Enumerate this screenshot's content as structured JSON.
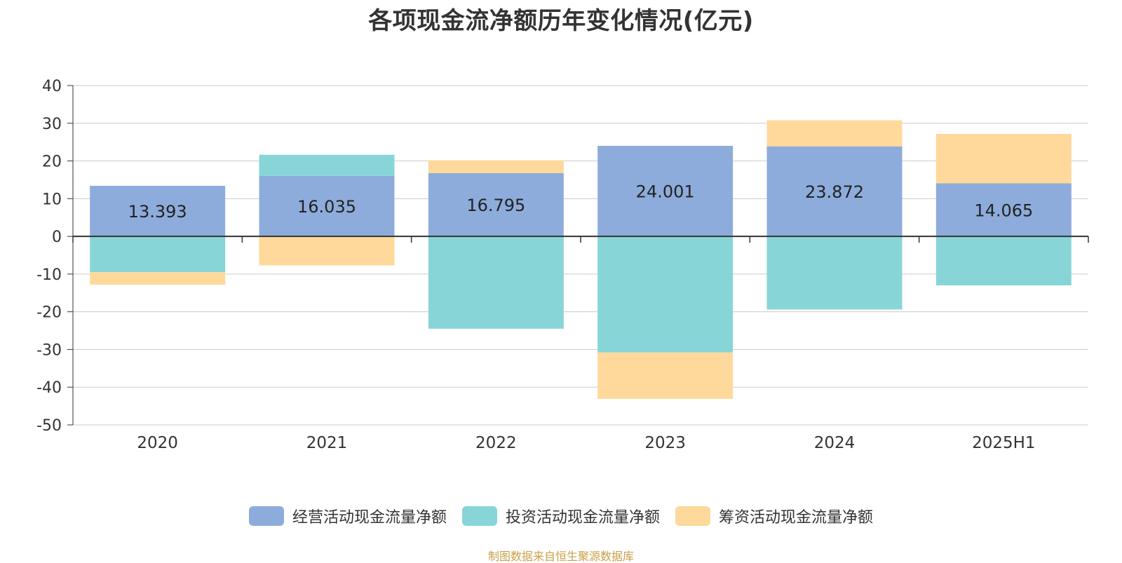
{
  "page": {
    "source": "制图数据来自恒生聚源数据库"
  },
  "chart_data": {
    "type": "bar",
    "stacked": true,
    "title": "各项现金流净额历年变化情况(亿元)",
    "categories": [
      "2020",
      "2021",
      "2022",
      "2023",
      "2024",
      "2025H1"
    ],
    "ylim": [
      -50,
      40
    ],
    "yticks": [
      "40",
      "30",
      "20",
      "10",
      "0",
      "-10",
      "-20",
      "-30",
      "-40",
      "-50"
    ],
    "grid": true,
    "legend_position": "bottom",
    "series": [
      {
        "name": "经营活动现金流量净额",
        "color": "#8dacdb",
        "values": [
          13.393,
          16.035,
          16.795,
          24.001,
          23.872,
          14.065
        ],
        "labels": [
          "13.393",
          "16.035",
          "16.795",
          "24.001",
          "23.872",
          "14.065"
        ]
      },
      {
        "name": "投资活动现金流量净额",
        "color": "#88d5d8",
        "values": [
          -9.5,
          5.6,
          -24.5,
          -30.8,
          -19.4,
          -13.0
        ]
      },
      {
        "name": "筹资活动现金流量净额",
        "color": "#fed99b",
        "values": [
          -3.3,
          -7.7,
          3.4,
          -12.3,
          6.9,
          13.1
        ]
      }
    ]
  }
}
